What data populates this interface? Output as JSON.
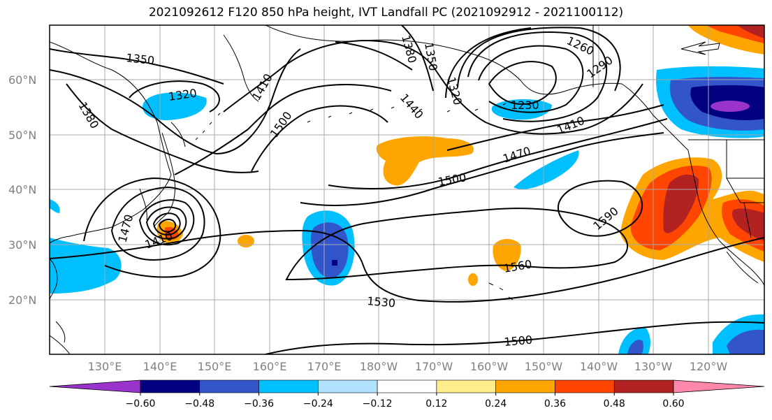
{
  "title": "2021092612 F120 850 hPa height, IVT Landfall PC (2021092912 - 2021100112)",
  "lat_labels": [
    "60°N",
    "50°N",
    "40°N",
    "30°N",
    "20°N"
  ],
  "lon_labels": [
    "130°E",
    "140°E",
    "150°E",
    "160°E",
    "170°E",
    "180°W",
    "170°W",
    "160°W",
    "150°W",
    "140°W",
    "130°W",
    "120°W"
  ],
  "contour_labels": [
    "1350",
    "1320",
    "1380",
    "1410",
    "1500",
    "1380",
    "1350",
    "1320",
    "1440",
    "1230",
    "1260",
    "1290",
    "1410",
    "1470",
    "1500",
    "1590",
    "1560",
    "1530",
    "1500",
    "1470",
    "1410"
  ],
  "colorbar": {
    "ticks": [
      "−0.60",
      "−0.48",
      "−0.36",
      "−0.24",
      "−0.12",
      "0.12",
      "0.24",
      "0.36",
      "0.48",
      "0.60"
    ],
    "colors": [
      "#9933cc",
      "#000080",
      "#3355cc",
      "#00bfff",
      "#b0e2ff",
      "#ffffff",
      "#ffec8b",
      "#ffa500",
      "#ff4500",
      "#b22222",
      "#ff88aa"
    ]
  }
}
